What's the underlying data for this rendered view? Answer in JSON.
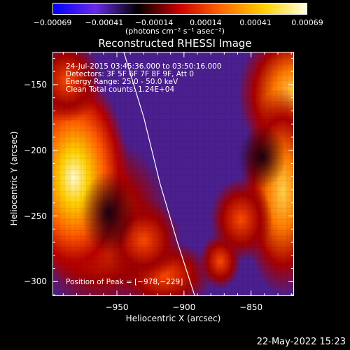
{
  "colorbar": {
    "tick_labels": [
      "−0.00069",
      "−0.00041",
      "−0.00014",
      "0.00014",
      "0.00041",
      "0.00069"
    ],
    "tick_values": [
      -0.00069,
      -0.00041,
      -0.00014,
      0.00014,
      0.00041,
      0.00069
    ],
    "range": [
      -0.00069,
      0.00069
    ],
    "units_label": "(photons cm⁻² s⁻¹ asec⁻²)",
    "colors": [
      "#0000ff",
      "#6a2be8",
      "#000000",
      "#cc0000",
      "#ff6a00",
      "#ffd000",
      "#ffffe0"
    ]
  },
  "chart_data": {
    "type": "heatmap",
    "title": "Reconstructed RHESSI Image",
    "xlabel": "Heliocentric X (arcsec)",
    "ylabel": "Heliocentric Y (arcsec)",
    "xlim": [
      -998,
      -818
    ],
    "ylim": [
      -311,
      -125
    ],
    "x_ticks": [
      -950,
      -900,
      -850
    ],
    "x_tick_labels": [
      "−950",
      "−900",
      "−850"
    ],
    "y_ticks": [
      -150,
      -200,
      -250,
      -300
    ],
    "y_tick_labels": [
      "−150",
      "−200",
      "−250",
      "−300"
    ],
    "annotations": [
      "24-Jul-2015 03:45:36.000 to 03:50:16.000",
      "Detectors: 3F 5F 6F 7F 8F 9F, Att 0",
      "Energy Range: 25.0 - 50.0 keV",
      "Clean     Total counts: 1.24E+04"
    ],
    "peak_label": "Position of Peak = [−978,−229]",
    "peak_position": [
      -978,
      -229
    ],
    "limb": [
      [
        -945,
        -125
      ],
      [
        -930,
        -175
      ],
      [
        -918,
        -225
      ],
      [
        -905,
        -270
      ],
      [
        -892,
        -311
      ]
    ],
    "background_color": "#4b1f8f"
  },
  "footer": {
    "date": "22-May-2022 15:23"
  }
}
